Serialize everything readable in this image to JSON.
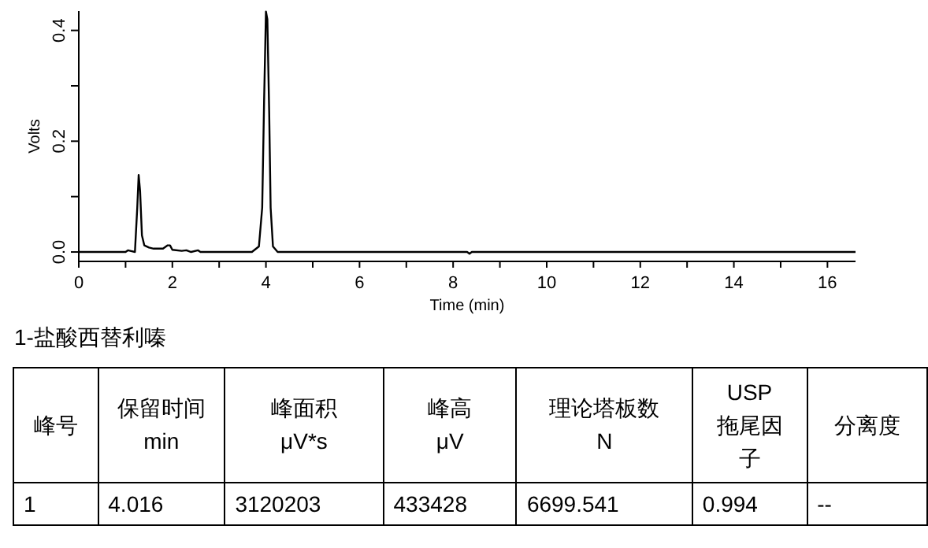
{
  "chart_data": {
    "type": "line",
    "xlabel": "Time (min)",
    "ylabel": "Volts",
    "color": "#000000",
    "x": [
      0,
      1.0,
      1.05,
      1.1,
      1.2,
      1.25,
      1.28,
      1.31,
      1.35,
      1.4,
      1.5,
      1.6,
      1.8,
      1.9,
      1.95,
      2.0,
      2.2,
      2.3,
      2.4,
      2.55,
      2.6,
      3.7,
      3.85,
      3.92,
      3.96,
      4.0,
      4.03,
      4.07,
      4.1,
      4.15,
      4.25,
      8.3,
      8.35,
      8.4,
      16.6
    ],
    "values": [
      0,
      0,
      0.003,
      0.002,
      0,
      0.08,
      0.139,
      0.11,
      0.03,
      0.012,
      0.008,
      0.006,
      0.006,
      0.012,
      0.012,
      0.004,
      0.002,
      0.003,
      0,
      0.003,
      0,
      0,
      0.01,
      0.08,
      0.27,
      0.434,
      0.42,
      0.25,
      0.08,
      0.01,
      0,
      0,
      -0.003,
      0,
      0
    ],
    "xlim": [
      0,
      16.6
    ],
    "ylim": [
      -0.017,
      0.435
    ],
    "xticks": [
      0,
      {
        "value": 1,
        "label": null
      },
      2,
      {
        "value": 3,
        "label": null
      },
      4,
      {
        "value": 5,
        "label": null
      },
      6,
      {
        "value": 7,
        "label": null
      },
      8,
      {
        "value": 9,
        "label": null
      },
      10,
      {
        "value": 11,
        "label": null
      },
      12,
      {
        "value": 13,
        "label": null
      },
      14,
      {
        "value": 15,
        "label": null
      },
      16
    ],
    "yticks": [
      {
        "value": 0,
        "label": "0.0"
      },
      {
        "value": 0.1,
        "label": null
      },
      0.2,
      {
        "value": 0.3,
        "label": null
      },
      0.4
    ],
    "annotations": [
      "1-盐酸西替利嗪",
      "峰号",
      "保留时间\nmin",
      "峰面积\nμV*s",
      "峰高\nμV",
      "理论塔板数\nN",
      "USP\n拖尾因子",
      "分离度",
      "1",
      "4.016",
      "3120203",
      "433428",
      "6699.541",
      "0.994",
      "--"
    ]
  }
}
